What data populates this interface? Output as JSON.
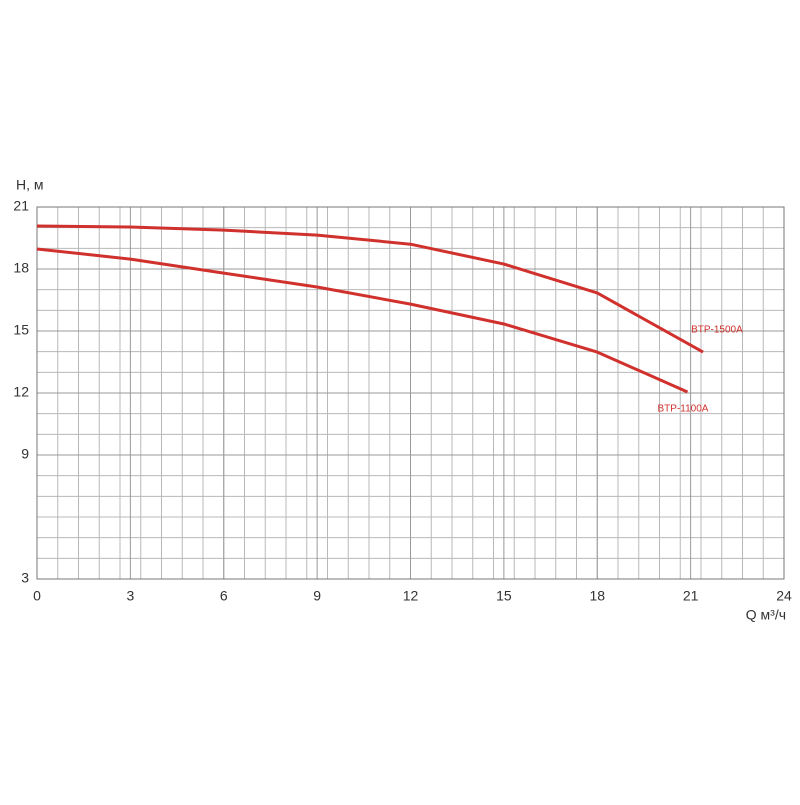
{
  "chart_data": {
    "type": "line",
    "y_label": "H, м",
    "x_label": "Q м³/ч",
    "xlim": [
      0,
      24
    ],
    "xticks": [
      0,
      3,
      6,
      9,
      12,
      15,
      18,
      21,
      24
    ],
    "ylim": [
      3,
      21
    ],
    "yticks": [
      21,
      18,
      15,
      12,
      9,
      3
    ],
    "grid": true,
    "series": [
      {
        "name": "BTP-1500A",
        "color": "#d0312d",
        "x": [
          0,
          3,
          6,
          9,
          12,
          15,
          18,
          21.4
        ],
        "values": [
          20.08,
          20.03,
          19.88,
          19.64,
          19.2,
          18.24,
          16.84,
          13.98
        ]
      },
      {
        "name": "BTP-1100A",
        "color": "#d0312d",
        "x": [
          0,
          3,
          6,
          9,
          12,
          15,
          18,
          20.9
        ],
        "values": [
          18.97,
          18.48,
          17.8,
          17.13,
          16.3,
          15.34,
          13.98,
          12.05
        ]
      }
    ]
  }
}
